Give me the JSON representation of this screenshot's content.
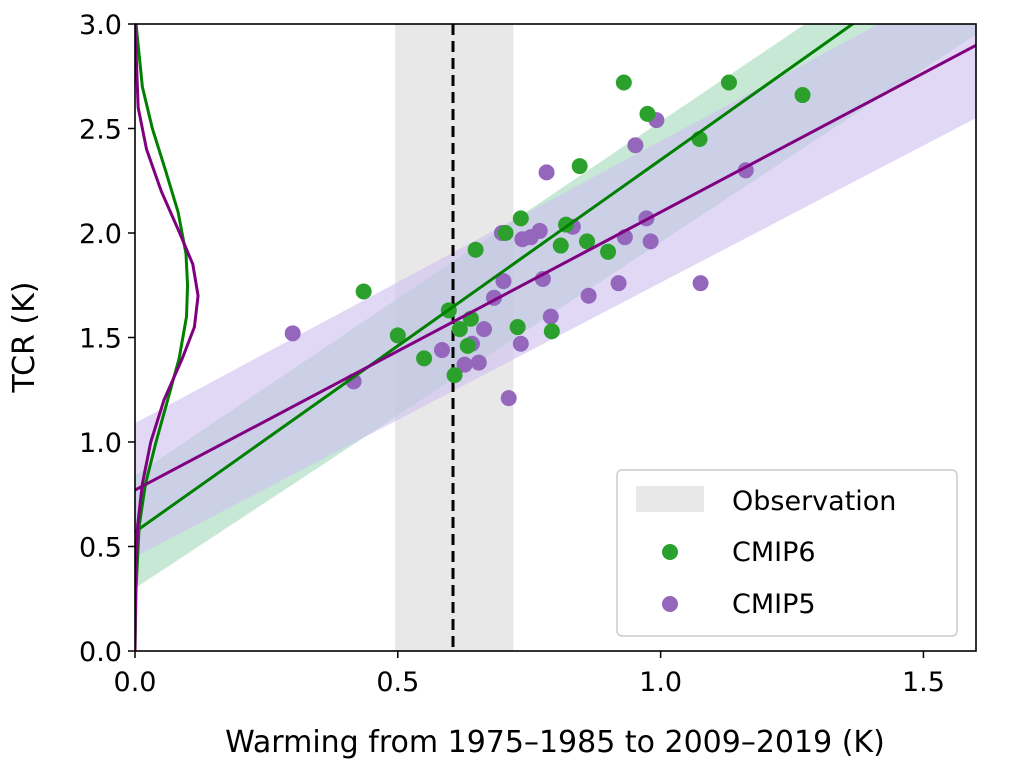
{
  "chart_data": {
    "type": "scatter",
    "xlabel": "Warming from 1975–1985 to 2009–2019 (K)",
    "ylabel": "TCR (K)",
    "xlim": [
      0,
      1.6
    ],
    "ylim": [
      0,
      3.0
    ],
    "xticks": [
      "0.0",
      "0.5",
      "1.0",
      "1.5"
    ],
    "yticks": [
      "0.0",
      "0.5",
      "1.0",
      "1.5",
      "2.0",
      "2.5",
      "3.0"
    ],
    "grid": false,
    "legend_placement": "lower-right",
    "observation": {
      "label": "Observation",
      "range": [
        0.495,
        0.72
      ],
      "best": 0.605,
      "color": "#e8e8e8"
    },
    "series": [
      {
        "name": "CMIP6",
        "color": "#2ca02c",
        "line_color": "#008000",
        "band_color": "#a8dcbf",
        "fit": {
          "intercept": 0.57,
          "slope": 1.78
        },
        "band": {
          "x": [
            0,
            1.6
          ],
          "lower": [
            0.3,
            2.95
          ],
          "upper": [
            0.84,
            3.55
          ]
        },
        "kde": {
          "y": [
            0,
            0.3,
            0.6,
            0.8,
            1.0,
            1.2,
            1.4,
            1.6,
            1.75,
            1.9,
            2.1,
            2.3,
            2.5,
            2.7,
            3.0
          ],
          "density": [
            0,
            0.002,
            0.008,
            0.02,
            0.04,
            0.062,
            0.084,
            0.098,
            0.1,
            0.097,
            0.082,
            0.058,
            0.033,
            0.014,
            0.002
          ]
        },
        "points": [
          [
            0.435,
            1.72
          ],
          [
            0.5,
            1.51
          ],
          [
            0.55,
            1.4
          ],
          [
            0.597,
            1.63
          ],
          [
            0.608,
            1.32
          ],
          [
            0.618,
            1.54
          ],
          [
            0.633,
            1.46
          ],
          [
            0.639,
            1.59
          ],
          [
            0.648,
            1.92
          ],
          [
            0.705,
            2.0
          ],
          [
            0.728,
            1.55
          ],
          [
            0.734,
            2.07
          ],
          [
            0.793,
            1.53
          ],
          [
            0.81,
            1.94
          ],
          [
            0.82,
            2.04
          ],
          [
            0.846,
            2.32
          ],
          [
            0.86,
            1.96
          ],
          [
            0.9,
            1.91
          ],
          [
            0.93,
            2.72
          ],
          [
            0.975,
            2.57
          ],
          [
            1.074,
            2.45
          ],
          [
            1.13,
            2.72
          ],
          [
            1.27,
            2.66
          ]
        ]
      },
      {
        "name": "CMIP5",
        "color": "#9467bd",
        "line_color": "#800080",
        "band_color": "#cfc3ef",
        "fit": {
          "intercept": 0.77,
          "slope": 1.33
        },
        "band": {
          "x": [
            0,
            1.6
          ],
          "lower": [
            0.45,
            2.55
          ],
          "upper": [
            1.09,
            3.25
          ]
        },
        "kde": {
          "y": [
            0,
            0.3,
            0.6,
            0.8,
            1.0,
            1.2,
            1.4,
            1.55,
            1.7,
            1.85,
            2.0,
            2.2,
            2.4,
            2.6,
            3.0
          ],
          "density": [
            0,
            0.001,
            0.005,
            0.014,
            0.03,
            0.055,
            0.09,
            0.113,
            0.12,
            0.11,
            0.085,
            0.05,
            0.022,
            0.006,
            0
          ]
        },
        "points": [
          [
            0.3,
            1.52
          ],
          [
            0.416,
            1.29
          ],
          [
            0.584,
            1.44
          ],
          [
            0.627,
            1.37
          ],
          [
            0.641,
            1.47
          ],
          [
            0.654,
            1.38
          ],
          [
            0.664,
            1.54
          ],
          [
            0.683,
            1.69
          ],
          [
            0.698,
            2.0
          ],
          [
            0.701,
            1.77
          ],
          [
            0.711,
            1.21
          ],
          [
            0.734,
            1.47
          ],
          [
            0.737,
            1.97
          ],
          [
            0.753,
            1.98
          ],
          [
            0.77,
            2.01
          ],
          [
            0.776,
            1.78
          ],
          [
            0.783,
            2.29
          ],
          [
            0.791,
            1.6
          ],
          [
            0.833,
            2.03
          ],
          [
            0.863,
            1.7
          ],
          [
            0.92,
            1.76
          ],
          [
            0.932,
            1.98
          ],
          [
            0.952,
            2.42
          ],
          [
            0.973,
            2.07
          ],
          [
            0.981,
            1.96
          ],
          [
            0.992,
            2.54
          ],
          [
            1.076,
            1.76
          ],
          [
            1.162,
            2.3
          ]
        ]
      }
    ]
  }
}
